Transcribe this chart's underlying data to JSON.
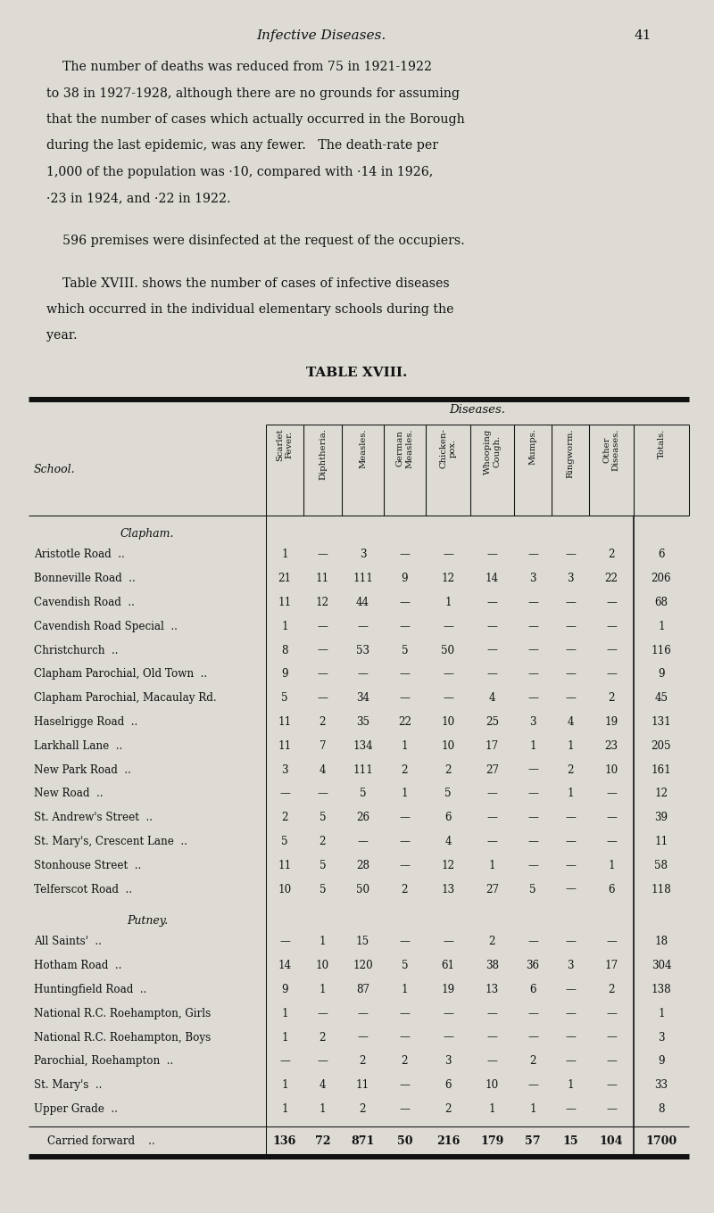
{
  "page_title": "Infective Diseases.",
  "page_number": "41",
  "bg_color": "#dddbd4",
  "paragraph1_lines": [
    "    The number of deaths was reduced from 75 in 1921-1922",
    "to 38 in 1927-1928, although there are no grounds for assuming",
    "that the number of cases which actually occurred in the Borough",
    "during the last epidemic, was any fewer.   The death-rate per",
    "1,000 of the population was ·10, compared with ·14 in 1926,",
    "·23 in 1924, and ·22 in 1922."
  ],
  "paragraph2": "    596 premises were disinfected at the request of the occupiers.",
  "paragraph3_lines": [
    "    Table XVIII. shows the number of cases of infective diseases",
    "which occurred in the individual elementary schools during the",
    "year."
  ],
  "table_title": "TABLE XVIII.",
  "col_headers": [
    "Scarlet\nFever.",
    "Diphtheria.",
    "Measles.",
    "German\nMeasles.",
    "Chicken-\npox.",
    "Whooping\nCough.",
    "Mumps.",
    "Ringworm.",
    "Other\nDiseases.",
    "Totals."
  ],
  "section_clapham": "Clapham.",
  "section_putney": "Putney.",
  "clapham_rows": [
    [
      "Aristotle Road  ..",
      "1",
      "—",
      "3",
      "—",
      "—",
      "—",
      "—",
      "—",
      "2",
      "6"
    ],
    [
      "Bonneville Road  ..",
      "21",
      "11",
      "111",
      "9",
      "12",
      "14",
      "3",
      "3",
      "22",
      "206"
    ],
    [
      "Cavendish Road  ..",
      "11",
      "12",
      "44",
      "—",
      "1",
      "—",
      "—",
      "—",
      "—",
      "68"
    ],
    [
      "Cavendish Road Special  ..",
      "1",
      "—",
      "—",
      "—",
      "—",
      "—",
      "—",
      "—",
      "—",
      "1"
    ],
    [
      "Christchurch  ..",
      "8",
      "—",
      "53",
      "5",
      "50",
      "—",
      "—",
      "—",
      "—",
      "116"
    ],
    [
      "Clapham Parochial, Old Town  ..",
      "9",
      "—",
      "—",
      "—",
      "—",
      "—",
      "—",
      "—",
      "—",
      "9"
    ],
    [
      "Clapham Parochial, Macaulay Rd.",
      "5",
      "—",
      "34",
      "—",
      "—",
      "4",
      "—",
      "—",
      "2",
      "45"
    ],
    [
      "Haselrigge Road  ..",
      "11",
      "2",
      "35",
      "22",
      "10",
      "25",
      "3",
      "4",
      "19",
      "131"
    ],
    [
      "Larkhall Lane  ..",
      "11",
      "7",
      "134",
      "1",
      "10",
      "17",
      "1",
      "1",
      "23",
      "205"
    ],
    [
      "New Park Road  ..",
      "3",
      "4",
      "111",
      "2",
      "2",
      "27",
      "—",
      "2",
      "10",
      "161"
    ],
    [
      "New Road  ..",
      "—",
      "—",
      "5",
      "1",
      "5",
      "—",
      "—",
      "1",
      "—",
      "12"
    ],
    [
      "St. Andrew's Street  ..",
      "2",
      "5",
      "26",
      "—",
      "6",
      "—",
      "—",
      "—",
      "—",
      "39"
    ],
    [
      "St. Mary's, Crescent Lane  ..",
      "5",
      "2",
      "—",
      "—",
      "4",
      "—",
      "—",
      "—",
      "—",
      "11"
    ],
    [
      "Stonhouse Street  ..",
      "11",
      "5",
      "28",
      "—",
      "12",
      "1",
      "—",
      "—",
      "1",
      "58"
    ],
    [
      "Telferscot Road  ..",
      "10",
      "5",
      "50",
      "2",
      "13",
      "27",
      "5",
      "—",
      "6",
      "118"
    ]
  ],
  "putney_rows": [
    [
      "All Saints'  ..",
      "—",
      "1",
      "15",
      "—",
      "—",
      "2",
      "—",
      "—",
      "—",
      "18"
    ],
    [
      "Hotham Road  ..",
      "14",
      "10",
      "120",
      "5",
      "61",
      "38",
      "36",
      "3",
      "17",
      "304"
    ],
    [
      "Huntingfield Road  ..",
      "9",
      "1",
      "87",
      "1",
      "19",
      "13",
      "6",
      "—",
      "2",
      "138"
    ],
    [
      "National R.C. Roehampton, Girls",
      "1",
      "—",
      "—",
      "—",
      "—",
      "—",
      "—",
      "—",
      "—",
      "1"
    ],
    [
      "National R.C. Roehampton, Boys",
      "1",
      "2",
      "—",
      "—",
      "—",
      "—",
      "—",
      "—",
      "—",
      "3"
    ],
    [
      "Parochial, Roehampton  ..",
      "—",
      "—",
      "2",
      "2",
      "3",
      "—",
      "2",
      "—",
      "—",
      "9"
    ],
    [
      "St. Mary's  ..",
      "1",
      "4",
      "11",
      "—",
      "6",
      "10",
      "—",
      "1",
      "—",
      "33"
    ],
    [
      "Upper Grade  ..",
      "1",
      "1",
      "2",
      "—",
      "2",
      "1",
      "1",
      "—",
      "—",
      "8"
    ]
  ],
  "footer_row": [
    "Carried forward",
    "136",
    "72",
    "871",
    "50",
    "216",
    "179",
    "57",
    "15",
    "104",
    "1700"
  ]
}
